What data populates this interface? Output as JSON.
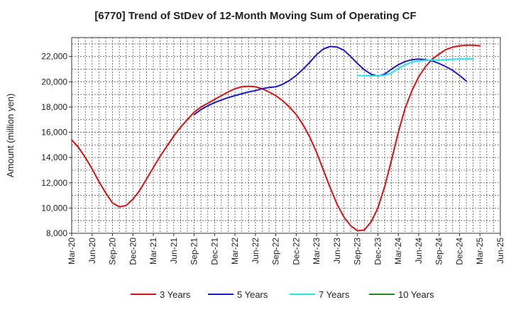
{
  "chart_data": {
    "type": "line",
    "title": "[6770]  Trend of StDev of 12-Month Moving Sum of Operating CF",
    "xlabel": "",
    "ylabel": "Amount (million yen)",
    "ylim": [
      8000,
      23500
    ],
    "yticks": [
      8000,
      10000,
      12000,
      14000,
      16000,
      18000,
      20000,
      22000
    ],
    "ytick_labels": [
      "8,000",
      "10,000",
      "12,000",
      "14,000",
      "16,000",
      "18,000",
      "20,000",
      "22,000"
    ],
    "xlim": [
      "2020-03",
      "2025-06"
    ],
    "xticks": [
      "2020-03",
      "2020-06",
      "2020-09",
      "2020-12",
      "2021-03",
      "2021-06",
      "2021-09",
      "2021-12",
      "2022-03",
      "2022-06",
      "2022-09",
      "2022-12",
      "2023-03",
      "2023-06",
      "2023-09",
      "2023-12",
      "2024-03",
      "2024-06",
      "2024-09",
      "2024-12",
      "2025-03",
      "2025-06"
    ],
    "xtick_labels": [
      "Mar-20",
      "Jun-20",
      "Sep-20",
      "Dec-20",
      "Mar-21",
      "Jun-21",
      "Sep-21",
      "Dec-21",
      "Mar-22",
      "Jun-22",
      "Sep-22",
      "Dec-22",
      "Mar-23",
      "Jun-23",
      "Sep-23",
      "Dec-23",
      "Mar-24",
      "Jun-24",
      "Sep-24",
      "Dec-24",
      "Mar-25",
      "Jun-25"
    ],
    "grid": true,
    "legend_position": "bottom",
    "series": [
      {
        "name": "3 Years",
        "color": "#dd1111",
        "start": "2020-03",
        "values": [
          15400,
          14800,
          14000,
          13100,
          12100,
          11200,
          10400,
          10100,
          10200,
          10700,
          11400,
          12300,
          13200,
          14100,
          14900,
          15700,
          16400,
          17000,
          17600,
          18000,
          18300,
          18600,
          18900,
          19200,
          19450,
          19600,
          19650,
          19600,
          19450,
          19200,
          18900,
          18500,
          18000,
          17400,
          16600,
          15600,
          14400,
          13000,
          11600,
          10300,
          9300,
          8600,
          8200,
          8250,
          8900,
          10000,
          11700,
          13800,
          16000,
          17900,
          19300,
          20400,
          21200,
          21800,
          22200,
          22550,
          22750,
          22850,
          22900,
          22900,
          22850
        ]
      },
      {
        "name": "5 Years",
        "color": "#1a1acc",
        "start": "2021-09",
        "values": [
          17400,
          17800,
          18100,
          18350,
          18550,
          18750,
          18900,
          19050,
          19200,
          19300,
          19450,
          19550,
          19600,
          19800,
          20100,
          20500,
          21000,
          21550,
          22150,
          22600,
          22800,
          22750,
          22500,
          22000,
          21450,
          20950,
          20600,
          20450,
          20600,
          21000,
          21350,
          21600,
          21750,
          21800,
          21750,
          21650,
          21450,
          21200,
          20900,
          20500,
          20050
        ]
      },
      {
        "name": "7 Years",
        "color": "#22e5ee",
        "start": "2023-09",
        "values": [
          20500,
          20480,
          20470,
          20480,
          20520,
          20700,
          21050,
          21350,
          21550,
          21650,
          21700,
          21720,
          21730,
          21750,
          21780,
          21800,
          21810,
          21800
        ]
      },
      {
        "name": "10 Years",
        "color": "#1f8c1f",
        "start": "2025-06",
        "values": []
      }
    ]
  }
}
